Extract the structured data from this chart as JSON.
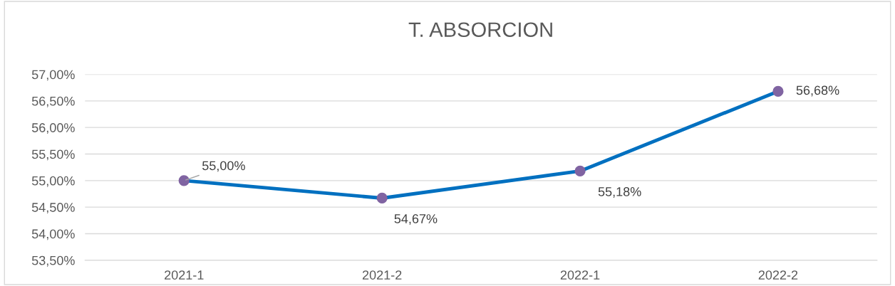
{
  "chart_data": {
    "type": "line",
    "title": "T. ABSORCION",
    "categories": [
      "2021-1",
      "2021-2",
      "2022-1",
      "2022-2"
    ],
    "series": [
      {
        "color": "#0070c0",
        "colors": [
          "#8064a2",
          "#8064a2",
          "#8064a2",
          "#8064a2"
        ],
        "values": [
          55.0,
          54.67,
          55.18,
          56.68
        ],
        "value_labels": [
          "55,00%",
          "54,67%",
          "55,18%",
          "56,68%"
        ]
      }
    ],
    "ylim": [
      53.5,
      57.0
    ],
    "yticks": [
      {
        "value": 53.5,
        "label": "53,50%"
      },
      {
        "value": 54.0,
        "label": "54,00%"
      },
      {
        "value": 54.5,
        "label": "54,50%"
      },
      {
        "value": 55.0,
        "label": "55,00%"
      },
      {
        "value": 55.5,
        "label": "55,50%"
      },
      {
        "value": 56.0,
        "label": "56,00%"
      },
      {
        "value": 56.5,
        "label": "56,50%"
      },
      {
        "value": 57.0,
        "label": "57,00%"
      }
    ],
    "grid": "y",
    "marker": "circle",
    "line_style": "solid"
  }
}
